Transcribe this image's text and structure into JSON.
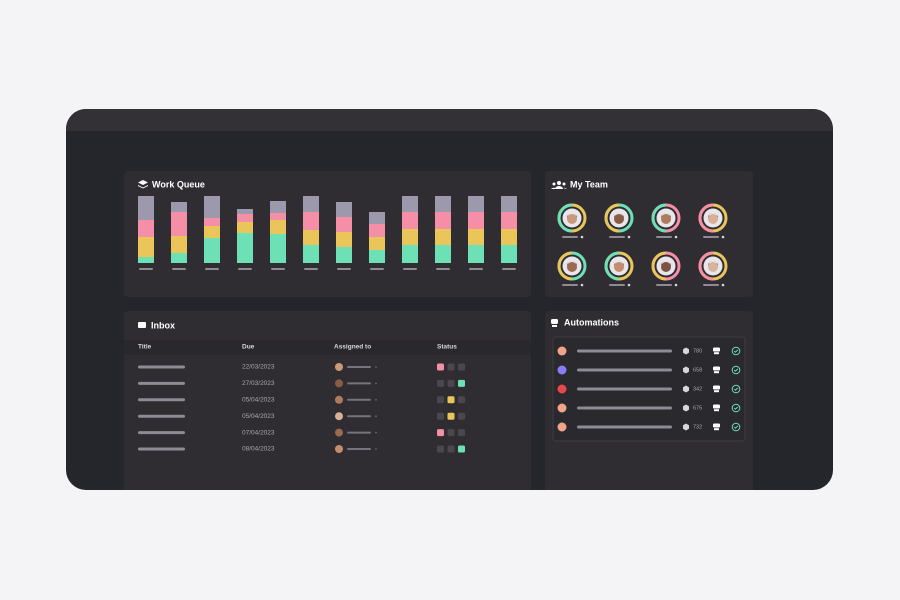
{
  "chart_data": {
    "type": "bar",
    "stacked": true,
    "title": "Work Queue",
    "series": [
      {
        "color": "#6ee0b6",
        "values": [
          6,
          10,
          25,
          30,
          29,
          18,
          16,
          13,
          18,
          18,
          18,
          18
        ]
      },
      {
        "color": "#e9c55a",
        "values": [
          20,
          17,
          12,
          11,
          14,
          15,
          15,
          13,
          16,
          16,
          16,
          16
        ]
      },
      {
        "color": "#f58fa8",
        "values": [
          17,
          24,
          8,
          8,
          7,
          18,
          15,
          13,
          17,
          17,
          17,
          17
        ]
      },
      {
        "color": "#9c99ad",
        "values": [
          24,
          10,
          22,
          5,
          12,
          16,
          15,
          12,
          16,
          16,
          16,
          16
        ]
      }
    ],
    "ylim": [
      0,
      70
    ]
  },
  "team": {
    "title": "My Team"
  },
  "inbox": {
    "title": "Inbox",
    "columns": [
      "Title",
      "Due",
      "Assigned to",
      "Status"
    ],
    "rows": [
      {
        "due": "22/03/2023",
        "status": {
          "index": 0,
          "color": "#f58fa8"
        }
      },
      {
        "due": "27/03/2023",
        "status": {
          "index": 2,
          "color": "#6ee0b6"
        }
      },
      {
        "due": "05/04/2023",
        "status": {
          "index": 1,
          "color": "#e9c55a"
        }
      },
      {
        "due": "05/04/2023",
        "status": {
          "index": 1,
          "color": "#e9c55a"
        }
      },
      {
        "due": "07/04/2023",
        "status": {
          "index": 0,
          "color": "#f58fa8"
        }
      },
      {
        "due": "08/04/2023",
        "status": {
          "index": 2,
          "color": "#6ee0b6"
        }
      }
    ]
  },
  "automations": {
    "title": "Automations",
    "rows": [
      {
        "count": "780"
      },
      {
        "count": "658"
      },
      {
        "count": "342"
      },
      {
        "count": "675"
      },
      {
        "count": "732"
      }
    ]
  }
}
